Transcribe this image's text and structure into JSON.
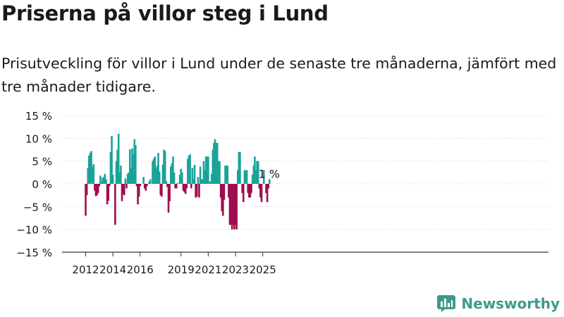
{
  "title": "Priserna på villor steg i Lund",
  "subtitle": "Prisutveckling för villor i Lund under de senaste tre månaderna, jämfört med tre månader tidigare.",
  "brand": {
    "name": "Newsworthy",
    "logo_icon": "newsworthy-bar-chart-logo-icon"
  },
  "colors": {
    "positive": "#1aa39a",
    "negative": "#9e0e4d",
    "axis": "#333333",
    "brand": "#3f9a8c"
  },
  "chart_data": {
    "type": "bar",
    "ylim": [
      -15,
      15
    ],
    "y_ticks": [
      15,
      10,
      5,
      0,
      -5,
      -10,
      -15
    ],
    "y_tick_labels": [
      "15 %",
      "10 %",
      "5 %",
      "0 %",
      "−5 %",
      "−10 %",
      "−15 %"
    ],
    "x_tick_labels": [
      {
        "label": "2012",
        "year": 2012
      },
      {
        "label": "2014",
        "year": 2014
      },
      {
        "label": "2016",
        "year": 2016
      },
      {
        "label": "2019",
        "year": 2019
      },
      {
        "label": "2021",
        "year": 2021
      },
      {
        "label": "2023",
        "year": 2023
      },
      {
        "label": "2025",
        "year": 2025
      }
    ],
    "x_start": "2012-01",
    "annotation": {
      "text": "1 %",
      "index": 161
    },
    "values": [
      -7,
      -2.5,
      3.5,
      6.2,
      6.8,
      7.2,
      3.7,
      4.3,
      -1.5,
      -2.7,
      -2.5,
      -2,
      -0.5,
      1.8,
      0.5,
      1.3,
      1.5,
      2.2,
      1,
      -4.5,
      -3.7,
      -0.5,
      7,
      10.5,
      2,
      0,
      -9,
      5,
      7.5,
      11,
      2.5,
      4,
      -3.8,
      -2.2,
      -2.5,
      1.2,
      -1,
      2.2,
      2.5,
      7.6,
      3.5,
      7.8,
      6.5,
      9.8,
      8.5,
      -0.5,
      -4.5,
      -2.8,
      -0.5,
      0,
      0,
      1.5,
      -1,
      -1.5,
      -0.5,
      0,
      0.5,
      1,
      0,
      5,
      5.5,
      6,
      3.5,
      4,
      6.8,
      2.7,
      -2.5,
      -2.8,
      4.2,
      7.5,
      7.2,
      0.6,
      -0.7,
      -6.3,
      -3.8,
      3.8,
      4.5,
      6,
      2.5,
      -1,
      -1,
      0.2,
      0,
      2,
      3.3,
      2.5,
      -1.5,
      -1.8,
      -2.2,
      -1,
      5.5,
      6.2,
      6.5,
      -1,
      3.5,
      1,
      4.2,
      -3,
      -2.8,
      1.5,
      -3,
      3.8,
      1,
      1,
      5,
      3,
      6,
      6,
      6,
      0.5,
      0.5,
      2.2,
      7.5,
      9,
      9.8,
      9,
      9,
      5,
      5,
      -3,
      -6,
      -7,
      -3.5,
      4,
      4,
      4,
      -3,
      -9,
      -9,
      -10,
      -9,
      -10,
      -9,
      -10,
      3,
      7,
      7,
      0,
      -2,
      -4,
      3,
      3,
      3,
      -2,
      -3,
      -3,
      -2,
      2,
      4,
      6,
      3,
      5,
      5,
      -1,
      -3,
      -4,
      0,
      3,
      0,
      -2,
      -4,
      -1,
      1
    ]
  }
}
